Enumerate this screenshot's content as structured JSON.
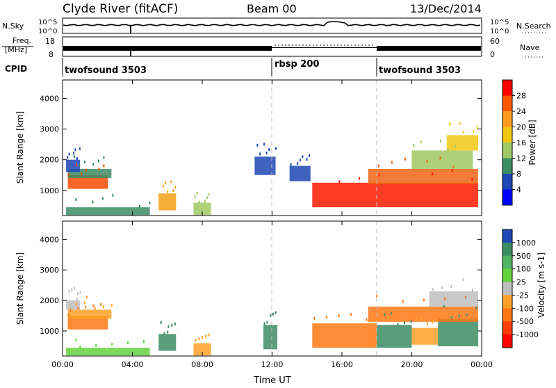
{
  "header": {
    "station": "Clyde River (fitACF)",
    "beam": "Beam 00",
    "date": "13/Dec/2014"
  },
  "noise_panel": {
    "left_label": "N.Sky",
    "right_label": "N.Search",
    "left_ticks": [
      "10^5",
      "10^0"
    ],
    "right_ticks": [
      "10^5",
      "10^0"
    ]
  },
  "freq_panel": {
    "left_label_1": "Freq.",
    "left_label_2": "[MHz]",
    "right_label": "Nave",
    "left_ticks": [
      "18",
      "8"
    ],
    "right_ticks": [
      "60",
      "0"
    ]
  },
  "cpid": {
    "label": "CPID",
    "segments": [
      {
        "name": "twofsound 3503",
        "start_hour": 0,
        "end_hour": 12
      },
      {
        "name": "rbsp 200",
        "start_hour": 12,
        "end_hour": 18
      },
      {
        "name": "twofsound 3503",
        "start_hour": 18,
        "end_hour": 24
      }
    ]
  },
  "chart_data": [
    {
      "type": "heatmap",
      "title": "Power",
      "xlabel": "Time UT",
      "ylabel": "Slant Range [km]",
      "xlim": [
        0,
        24
      ],
      "ylim": [
        180,
        4600
      ],
      "x_ticks": [
        "00:00",
        "04:00",
        "08:00",
        "12:00",
        "16:00",
        "20:00",
        "00:00"
      ],
      "y_ticks": [
        1000,
        2000,
        3000,
        4000
      ],
      "colorbar_label": "Power [dB]",
      "colorbar_ticks": [
        "28",
        "24",
        "20",
        "16",
        "12",
        "8",
        "4"
      ],
      "colorbar_colors": [
        "#ff0000",
        "#ff5a00",
        "#ff9b1e",
        "#f0c814",
        "#a0c864",
        "#3c8c64",
        "#1e46b4",
        "#0000ff"
      ],
      "regions": [
        {
          "t0": 0.3,
          "t1": 2.6,
          "r0": 1050,
          "r1": 1500,
          "color": "#ff4a00"
        },
        {
          "t0": 0.3,
          "t1": 2.8,
          "r0": 1400,
          "r1": 1700,
          "color": "#3c8c64"
        },
        {
          "t0": 0.2,
          "t1": 1.0,
          "r0": 1600,
          "r1": 2000,
          "color": "#1e46b4"
        },
        {
          "t0": 0.2,
          "t1": 5.0,
          "r0": 200,
          "r1": 450,
          "color": "#3c8c64"
        },
        {
          "t0": 5.5,
          "t1": 6.5,
          "r0": 350,
          "r1": 900,
          "color": "#f0a014"
        },
        {
          "t0": 7.5,
          "t1": 8.5,
          "r0": 200,
          "r1": 600,
          "color": "#a0c864"
        },
        {
          "t0": 11.0,
          "t1": 12.2,
          "r0": 1500,
          "r1": 2100,
          "color": "#1e46b4"
        },
        {
          "t0": 13.0,
          "t1": 14.2,
          "r0": 1300,
          "r1": 1800,
          "color": "#1e46b4"
        },
        {
          "t0": 14.3,
          "t1": 23.8,
          "r0": 450,
          "r1": 1250,
          "color": "#ff1a00"
        },
        {
          "t0": 17.5,
          "t1": 23.8,
          "r0": 1200,
          "r1": 1700,
          "color": "#f06414"
        },
        {
          "t0": 20.0,
          "t1": 23.5,
          "r0": 1700,
          "r1": 2300,
          "color": "#a0c864"
        },
        {
          "t0": 22.0,
          "t1": 23.8,
          "r0": 2300,
          "r1": 2800,
          "color": "#f0c814"
        }
      ]
    },
    {
      "type": "heatmap",
      "title": "Velocity",
      "xlabel": "Time UT",
      "ylabel": "Slant Range [km]",
      "xlim": [
        0,
        24
      ],
      "ylim": [
        180,
        4600
      ],
      "x_ticks": [
        "00:00",
        "04:00",
        "08:00",
        "12:00",
        "16:00",
        "20:00",
        "00:00"
      ],
      "y_ticks": [
        1000,
        2000,
        3000,
        4000
      ],
      "colorbar_label": "Velocity [m s-1]",
      "colorbar_ticks": [
        "1000",
        "500",
        "100",
        "25",
        "-25",
        "-100",
        "-500",
        "-1000"
      ],
      "colorbar_colors": [
        "#1e46b4",
        "#3c8c64",
        "#50b464",
        "#64d23c",
        "#bebebe",
        "#ffa028",
        "#ff7814",
        "#ff3c0a",
        "#ff0000"
      ],
      "regions": [
        {
          "t0": 0.3,
          "t1": 2.6,
          "r0": 1050,
          "r1": 1500,
          "color": "#ff7814"
        },
        {
          "t0": 0.3,
          "t1": 2.8,
          "r0": 1400,
          "r1": 1700,
          "color": "#ffa028"
        },
        {
          "t0": 0.2,
          "t1": 1.0,
          "r0": 1700,
          "r1": 2000,
          "color": "#bebebe"
        },
        {
          "t0": 0.2,
          "t1": 5.0,
          "r0": 200,
          "r1": 450,
          "color": "#64d23c"
        },
        {
          "t0": 5.5,
          "t1": 6.5,
          "r0": 350,
          "r1": 900,
          "color": "#3c8c64"
        },
        {
          "t0": 7.5,
          "t1": 8.5,
          "r0": 200,
          "r1": 600,
          "color": "#ffa028"
        },
        {
          "t0": 11.5,
          "t1": 12.3,
          "r0": 400,
          "r1": 1200,
          "color": "#3c8c64"
        },
        {
          "t0": 14.3,
          "t1": 18.0,
          "r0": 450,
          "r1": 1250,
          "color": "#ff7814"
        },
        {
          "t0": 18.0,
          "t1": 20.0,
          "r0": 450,
          "r1": 1200,
          "color": "#3c8c64"
        },
        {
          "t0": 20.0,
          "t1": 21.5,
          "r0": 550,
          "r1": 1100,
          "color": "#ffa028"
        },
        {
          "t0": 21.5,
          "t1": 23.8,
          "r0": 500,
          "r1": 1400,
          "color": "#3c8c64"
        },
        {
          "t0": 17.5,
          "t1": 23.8,
          "r0": 1300,
          "r1": 1800,
          "color": "#ff7814"
        },
        {
          "t0": 21.0,
          "t1": 23.8,
          "r0": 1800,
          "r1": 2300,
          "color": "#bebebe"
        }
      ]
    }
  ]
}
